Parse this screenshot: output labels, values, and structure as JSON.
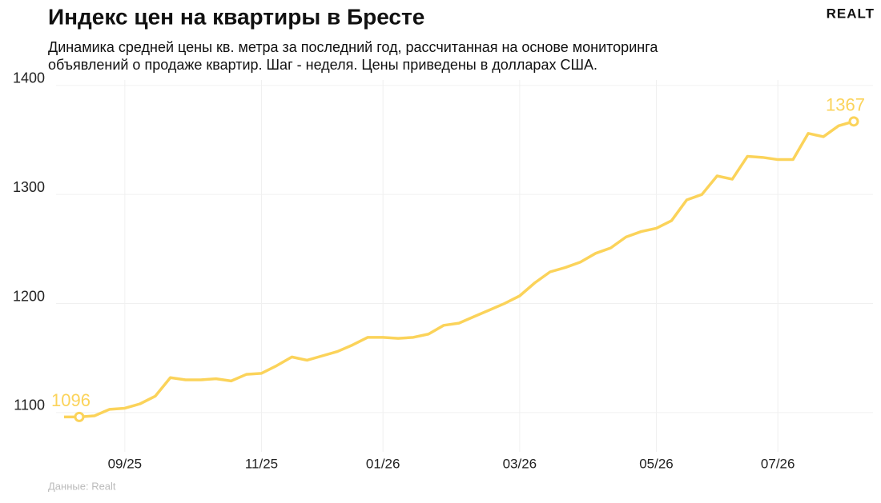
{
  "chart_data": {
    "type": "line",
    "title": "Индекс цен на квартиры в Бресте",
    "subtitle": [
      "Динамика средней цены кв. метра за последний год, рассчитанная на основе мониторинга",
      "объявлений о продаже квартир. Шаг - неделя. Цены приведены в долларах США."
    ],
    "logo": "REALT",
    "source": "Данные: Realt",
    "categories": [
      null,
      null,
      null,
      null,
      "09/25",
      null,
      null,
      null,
      null,
      null,
      null,
      null,
      null,
      "11/25",
      null,
      null,
      null,
      null,
      null,
      null,
      null,
      "01/26",
      null,
      null,
      null,
      null,
      null,
      null,
      null,
      null,
      "03/26",
      null,
      null,
      null,
      null,
      null,
      null,
      null,
      null,
      "05/26",
      null,
      null,
      null,
      null,
      null,
      null,
      null,
      "07/26",
      null,
      null,
      null,
      null,
      null
    ],
    "values": [
      1096,
      1096,
      1097,
      1103,
      1104,
      1108,
      1115,
      1132,
      1130,
      1130,
      1131,
      1129,
      1135,
      1136,
      1143,
      1151,
      1148,
      1152,
      1156,
      1162,
      1169,
      1169,
      1168,
      1169,
      1172,
      1180,
      1182,
      1188,
      1194,
      1200,
      1207,
      1219,
      1229,
      1233,
      1238,
      1246,
      1251,
      1261,
      1266,
      1269,
      1276,
      1295,
      1300,
      1317,
      1314,
      1335,
      1334,
      1332,
      1332,
      1356,
      1353,
      1363,
      1367
    ],
    "labeled_points": [
      1,
      52
    ],
    "color": "#fbd35a",
    "ylim": [
      1064,
      1405
    ],
    "yticks": [
      1100,
      1200,
      1300,
      1400
    ],
    "grid": true
  }
}
